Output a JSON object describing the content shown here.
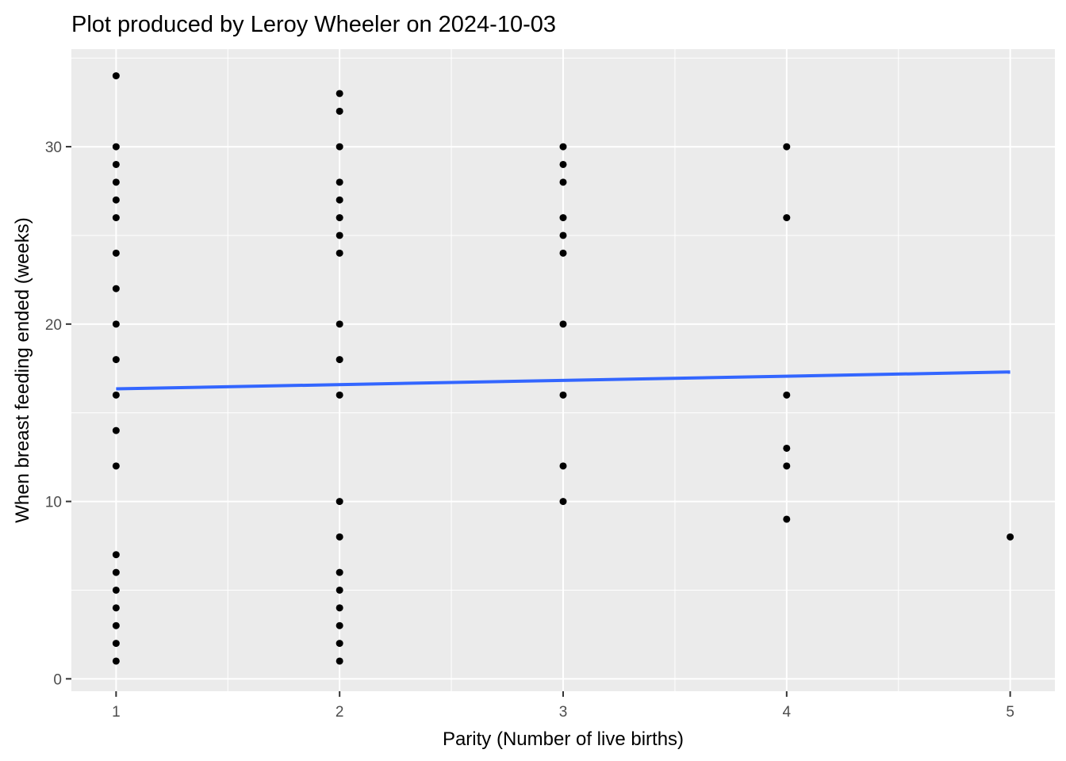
{
  "chart_data": {
    "type": "scatter",
    "title": "Plot produced by Leroy Wheeler on 2024-10-03",
    "xlabel": "Parity (Number of live births)",
    "ylabel": "When breast feeding ended (weeks)",
    "xlim": [
      0.8,
      5.2
    ],
    "ylim": [
      -0.7,
      35.5
    ],
    "x_ticks": [
      1,
      2,
      3,
      4,
      5
    ],
    "y_ticks": [
      0,
      10,
      20,
      30
    ],
    "x_tick_labels": [
      "1",
      "2",
      "3",
      "4",
      "5"
    ],
    "y_tick_labels": [
      "0",
      "10",
      "20",
      "30"
    ],
    "grid": true,
    "legend": "none",
    "point_color": "#000000",
    "panel_background": "#ebebeb",
    "grid_color": "#ffffff",
    "points": [
      {
        "x": 1,
        "y": 34
      },
      {
        "x": 1,
        "y": 30
      },
      {
        "x": 1,
        "y": 29
      },
      {
        "x": 1,
        "y": 28
      },
      {
        "x": 1,
        "y": 27
      },
      {
        "x": 1,
        "y": 26
      },
      {
        "x": 1,
        "y": 24
      },
      {
        "x": 1,
        "y": 22
      },
      {
        "x": 1,
        "y": 20
      },
      {
        "x": 1,
        "y": 18
      },
      {
        "x": 1,
        "y": 16
      },
      {
        "x": 1,
        "y": 14
      },
      {
        "x": 1,
        "y": 12
      },
      {
        "x": 1,
        "y": 7
      },
      {
        "x": 1,
        "y": 6
      },
      {
        "x": 1,
        "y": 5
      },
      {
        "x": 1,
        "y": 4
      },
      {
        "x": 1,
        "y": 3
      },
      {
        "x": 1,
        "y": 2
      },
      {
        "x": 1,
        "y": 1
      },
      {
        "x": 2,
        "y": 33
      },
      {
        "x": 2,
        "y": 32
      },
      {
        "x": 2,
        "y": 30
      },
      {
        "x": 2,
        "y": 28
      },
      {
        "x": 2,
        "y": 27
      },
      {
        "x": 2,
        "y": 26
      },
      {
        "x": 2,
        "y": 25
      },
      {
        "x": 2,
        "y": 24
      },
      {
        "x": 2,
        "y": 20
      },
      {
        "x": 2,
        "y": 18
      },
      {
        "x": 2,
        "y": 16
      },
      {
        "x": 2,
        "y": 10
      },
      {
        "x": 2,
        "y": 8
      },
      {
        "x": 2,
        "y": 6
      },
      {
        "x": 2,
        "y": 5
      },
      {
        "x": 2,
        "y": 4
      },
      {
        "x": 2,
        "y": 3
      },
      {
        "x": 2,
        "y": 2
      },
      {
        "x": 2,
        "y": 1
      },
      {
        "x": 3,
        "y": 30
      },
      {
        "x": 3,
        "y": 29
      },
      {
        "x": 3,
        "y": 28
      },
      {
        "x": 3,
        "y": 26
      },
      {
        "x": 3,
        "y": 25
      },
      {
        "x": 3,
        "y": 24
      },
      {
        "x": 3,
        "y": 20
      },
      {
        "x": 3,
        "y": 16
      },
      {
        "x": 3,
        "y": 12
      },
      {
        "x": 3,
        "y": 10
      },
      {
        "x": 4,
        "y": 30
      },
      {
        "x": 4,
        "y": 26
      },
      {
        "x": 4,
        "y": 16
      },
      {
        "x": 4,
        "y": 13
      },
      {
        "x": 4,
        "y": 12
      },
      {
        "x": 4,
        "y": 9
      },
      {
        "x": 5,
        "y": 8
      }
    ],
    "trend_line": {
      "color": "#3366ff",
      "points": [
        {
          "x": 1,
          "y": 16.35
        },
        {
          "x": 5,
          "y": 17.3
        }
      ]
    }
  }
}
